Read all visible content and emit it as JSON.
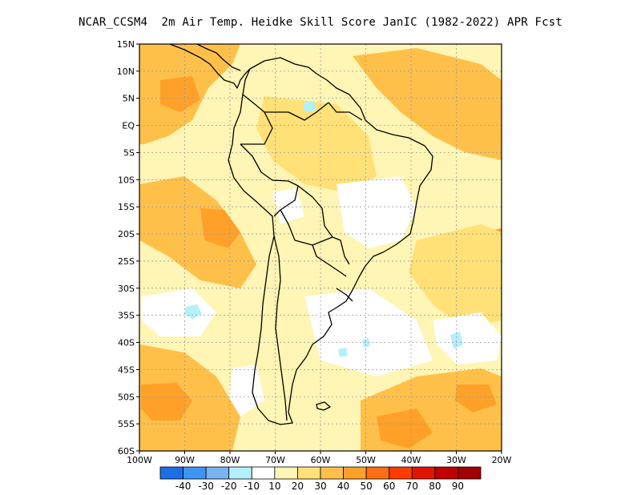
{
  "title": "NCAR_CCSM4  2m Air Temp. Heidke Skill Score JanIC (1982-2022) APR Fcst",
  "map": {
    "lon_range": [
      -100,
      -20
    ],
    "lat_range": [
      -60,
      15
    ],
    "lat_labels": [
      "15N",
      "10N",
      "5N",
      "EQ",
      "5S",
      "10S",
      "15S",
      "20S",
      "25S",
      "30S",
      "35S",
      "40S",
      "45S",
      "50S",
      "55S",
      "60S"
    ],
    "lat_values": [
      15,
      10,
      5,
      0,
      -5,
      -10,
      -15,
      -20,
      -25,
      -30,
      -35,
      -40,
      -45,
      -50,
      -55,
      -60
    ],
    "lon_labels": [
      "100W",
      "90W",
      "80W",
      "70W",
      "60W",
      "50W",
      "40W",
      "30W",
      "20W"
    ],
    "lon_values": [
      -100,
      -90,
      -80,
      -70,
      -60,
      -50,
      -40,
      -30,
      -20
    ],
    "grid": "dotted"
  },
  "colorbar": {
    "labels": [
      "-40",
      "-30",
      "-20",
      "-10",
      "10",
      "20",
      "30",
      "40",
      "50",
      "60",
      "70",
      "80",
      "90"
    ],
    "colors": [
      "#1e6ee6",
      "#3c96f0",
      "#78b4f0",
      "#b4f0fa",
      "#ffffff",
      "#fff5b4",
      "#ffe178",
      "#ffc04a",
      "#ffa028",
      "#ff6e14",
      "#ff3c00",
      "#e11400",
      "#c00000",
      "#a00000"
    ]
  },
  "legend": {
    "fills": [
      "#ffffff",
      "#fff5b4",
      "#ffe178",
      "#ffc04a",
      "#ffa028",
      "#b4f0fa"
    ]
  }
}
